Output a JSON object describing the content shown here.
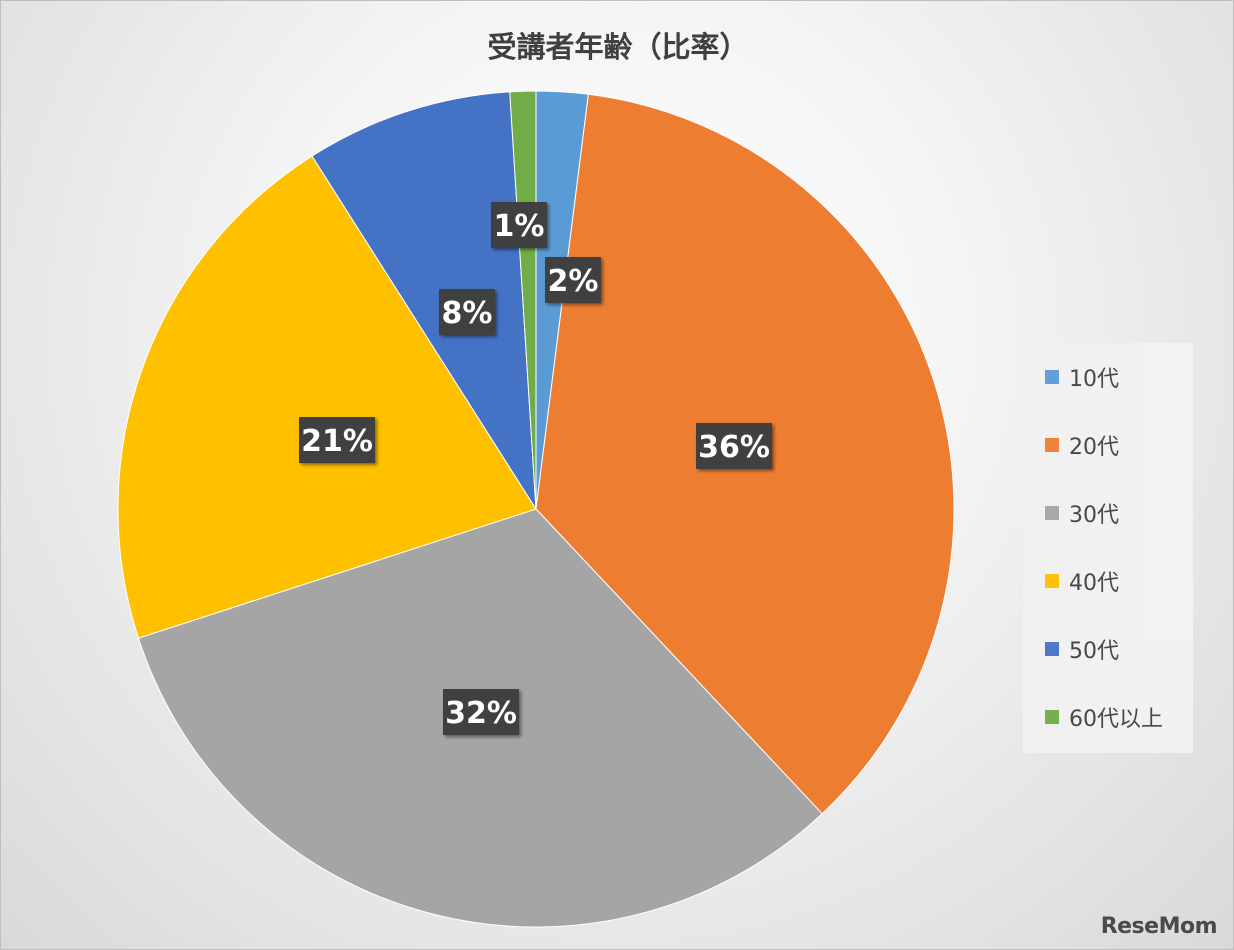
{
  "chart_data": {
    "type": "pie",
    "title": "受講者年齢（比率）",
    "categories": [
      "10代",
      "20代",
      "30代",
      "40代",
      "50代",
      "60代以上"
    ],
    "values": [
      2,
      36,
      32,
      21,
      8,
      1
    ],
    "percent_labels": [
      "2%",
      "36%",
      "32%",
      "21%",
      "8%",
      "1%"
    ],
    "colors": [
      "#5B9BD5",
      "#ED7D31",
      "#A5A5A5",
      "#FFC000",
      "#4472C4",
      "#70AD47"
    ],
    "legend_position": "right"
  },
  "watermark": "ReseMom"
}
